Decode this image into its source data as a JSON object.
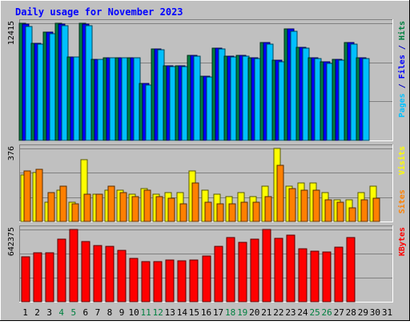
{
  "chart_data": {
    "type": "bar",
    "title": "Daily usage for November 2023",
    "categories": [
      "1",
      "2",
      "3",
      "4",
      "5",
      "6",
      "7",
      "8",
      "9",
      "10",
      "11",
      "12",
      "13",
      "14",
      "15",
      "16",
      "17",
      "18",
      "19",
      "20",
      "21",
      "22",
      "23",
      "24",
      "25",
      "26",
      "27",
      "28",
      "29",
      "30",
      "31"
    ],
    "category_colors": [
      "#000000",
      "#000000",
      "#000000",
      "#008040",
      "#008040",
      "#000000",
      "#000000",
      "#000000",
      "#000000",
      "#000000",
      "#008040",
      "#008040",
      "#000000",
      "#000000",
      "#000000",
      "#000000",
      "#000000",
      "#008040",
      "#008040",
      "#000000",
      "#000000",
      "#000000",
      "#000000",
      "#000000",
      "#008040",
      "#008040",
      "#000000",
      "#000000",
      "#000000",
      "#000000",
      "#000000"
    ],
    "panels": [
      {
        "name": "hits-files-pages",
        "scale_label": "12415",
        "max": 12415,
        "right_labels": [
          {
            "text": "Pages",
            "color": "#00C0FF"
          },
          {
            "text": " / ",
            "color": "#0000C0"
          },
          {
            "text": "Files",
            "color": "#0000FF"
          },
          {
            "text": " / ",
            "color": "#0000C0"
          },
          {
            "text": "Hits",
            "color": "#008040"
          }
        ],
        "series": [
          {
            "name": "Hits",
            "color": "#008040",
            "values": [
              12415,
              10300,
              11460,
              12415,
              8880,
              12415,
              8600,
              8800,
              8800,
              8800,
              6000,
              9700,
              7900,
              7900,
              9000,
              6800,
              9800,
              8900,
              9000,
              8800,
              10400,
              8500,
              11800,
              9900,
              8800,
              8300,
              8600,
              10400,
              8800,
              null,
              null
            ]
          },
          {
            "name": "Files",
            "color": "#0000FF",
            "values": [
              12300,
              10300,
              11460,
              12300,
              8880,
              12300,
              8600,
              8800,
              8800,
              8800,
              6000,
              9700,
              7900,
              7900,
              9000,
              6800,
              9800,
              8900,
              9000,
              8800,
              10400,
              8500,
              11800,
              9900,
              8800,
              8300,
              8600,
              10400,
              8800,
              null,
              null
            ]
          },
          {
            "name": "Pages",
            "color": "#00C0FF",
            "values": [
              12100,
              10200,
              11300,
              12200,
              8880,
              12200,
              8580,
              8780,
              8780,
              8780,
              5880,
              9580,
              7820,
              7820,
              8920,
              6720,
              9680,
              8820,
              8920,
              8700,
              10200,
              8300,
              11600,
              9800,
              8700,
              8200,
              8500,
              10200,
              8700,
              null,
              null
            ]
          }
        ]
      },
      {
        "name": "visits-sites",
        "scale_label": "376",
        "max": 376,
        "right_labels": [
          {
            "text": "Sites",
            "color": "#FF8000"
          },
          {
            "text": " / ",
            "color": "#C0C0C0"
          },
          {
            "text": "Visits",
            "color": "#FFFF00"
          }
        ],
        "series": [
          {
            "name": "Visits",
            "color": "#FFFF00",
            "values": [
              240,
              250,
              100,
              160,
              100,
              320,
              140,
              160,
              160,
              140,
              170,
              140,
              150,
              150,
              260,
              160,
              140,
              130,
              150,
              130,
              180,
              376,
              180,
              200,
              200,
              150,
              110,
              110,
              150,
              180,
              null
            ]
          },
          {
            "name": "Sites",
            "color": "#FF8000",
            "values": [
              260,
              270,
              150,
              180,
              90,
              140,
              140,
              180,
              150,
              130,
              160,
              130,
              120,
              90,
              200,
              100,
              90,
              90,
              100,
              100,
              130,
              290,
              170,
              160,
              160,
              110,
              100,
              70,
              110,
              120,
              null
            ]
          }
        ]
      },
      {
        "name": "kbytes",
        "scale_label": "642375",
        "max": 642375,
        "right_labels": [
          {
            "text": "KBytes",
            "color": "#FF0000"
          }
        ],
        "series": [
          {
            "name": "KBytes",
            "color": "#FF0000",
            "values": [
              398000,
              434000,
              438000,
              560000,
              642375,
              534000,
              500000,
              490000,
              454000,
              385000,
              356000,
              354000,
              374000,
              361000,
              370000,
              407000,
              490000,
              568000,
              531000,
              554000,
              642375,
              564000,
              591000,
              472000,
              453000,
              446000,
              483000,
              570000,
              null,
              null,
              null
            ]
          }
        ]
      }
    ],
    "grid": true,
    "legend_position": "right"
  }
}
